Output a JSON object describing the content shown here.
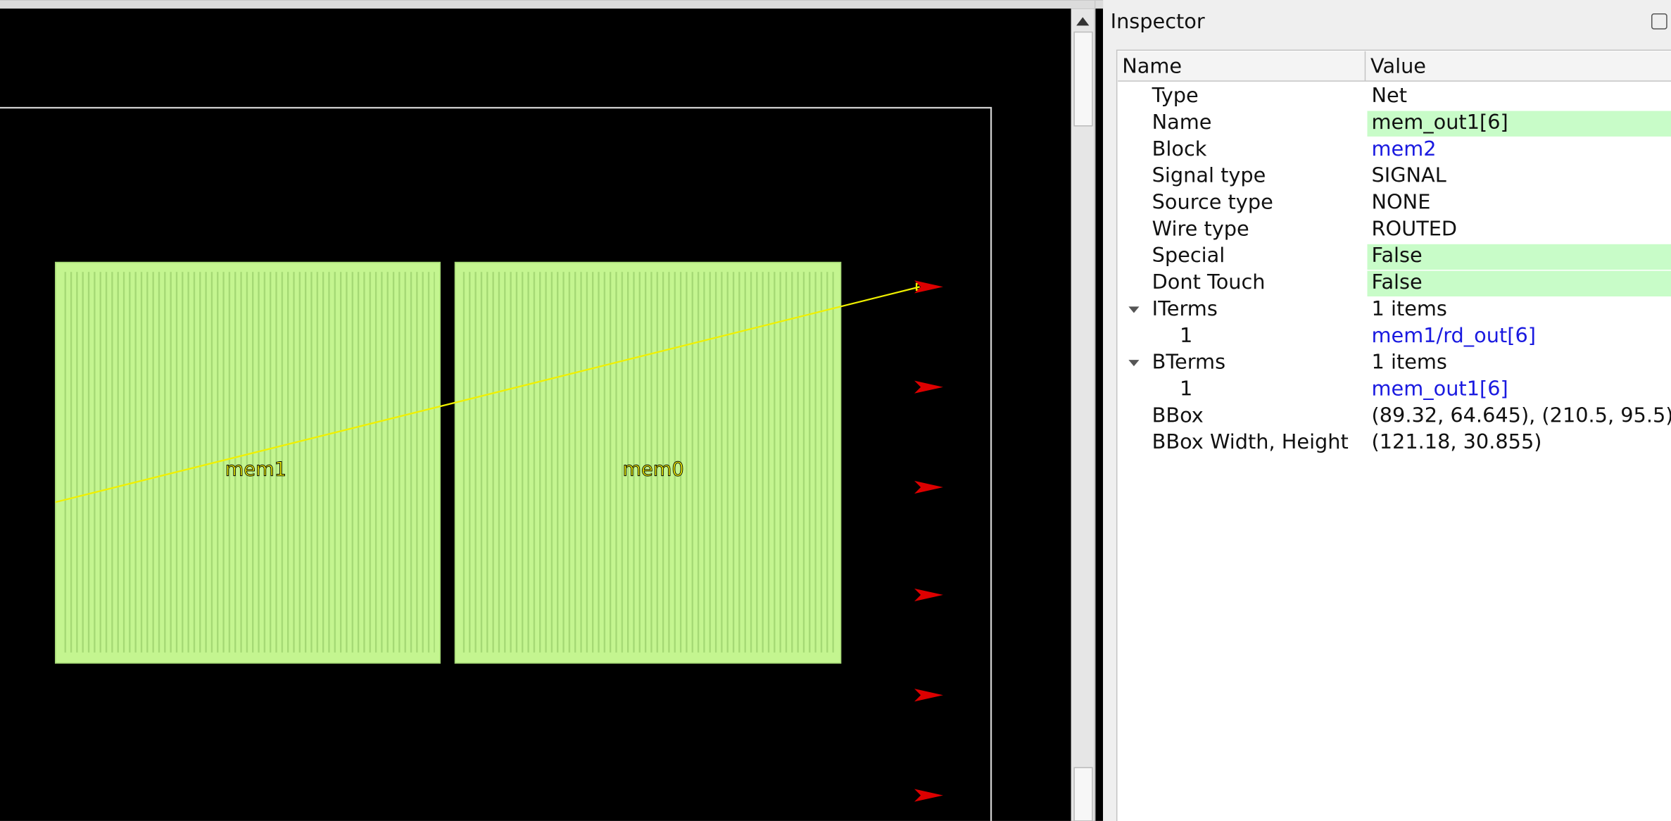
{
  "layout_view": {
    "labels": [
      "mem1",
      "mem0"
    ]
  },
  "inspector": {
    "title": "Inspector",
    "columns": [
      "Name",
      "Value"
    ],
    "rows": [
      {
        "name": "Type",
        "value": "Net"
      },
      {
        "name": "Name",
        "value": "mem_out1[6]",
        "highlight": true
      },
      {
        "name": "Block",
        "value": "mem2",
        "link": true
      },
      {
        "name": "Signal type",
        "value": "SIGNAL"
      },
      {
        "name": "Source type",
        "value": "NONE"
      },
      {
        "name": "Wire type",
        "value": "ROUTED"
      },
      {
        "name": "Special",
        "value": "False",
        "highlight": true
      },
      {
        "name": "Dont Touch",
        "value": "False",
        "highlight": true
      },
      {
        "name": "ITerms",
        "value": "1 items",
        "expanded": true
      },
      {
        "name": "1",
        "value": "mem1/rd_out[6]",
        "link": true,
        "level": 1
      },
      {
        "name": "BTerms",
        "value": "1 items",
        "expanded": true
      },
      {
        "name": "1",
        "value": "mem_out1[6]",
        "link": true,
        "level": 1
      },
      {
        "name": "BBox",
        "value": "(89.32, 64.645), (210.5, 95.5)"
      },
      {
        "name": "BBox Width, Height",
        "value": "(121.18, 30.855)"
      }
    ]
  }
}
